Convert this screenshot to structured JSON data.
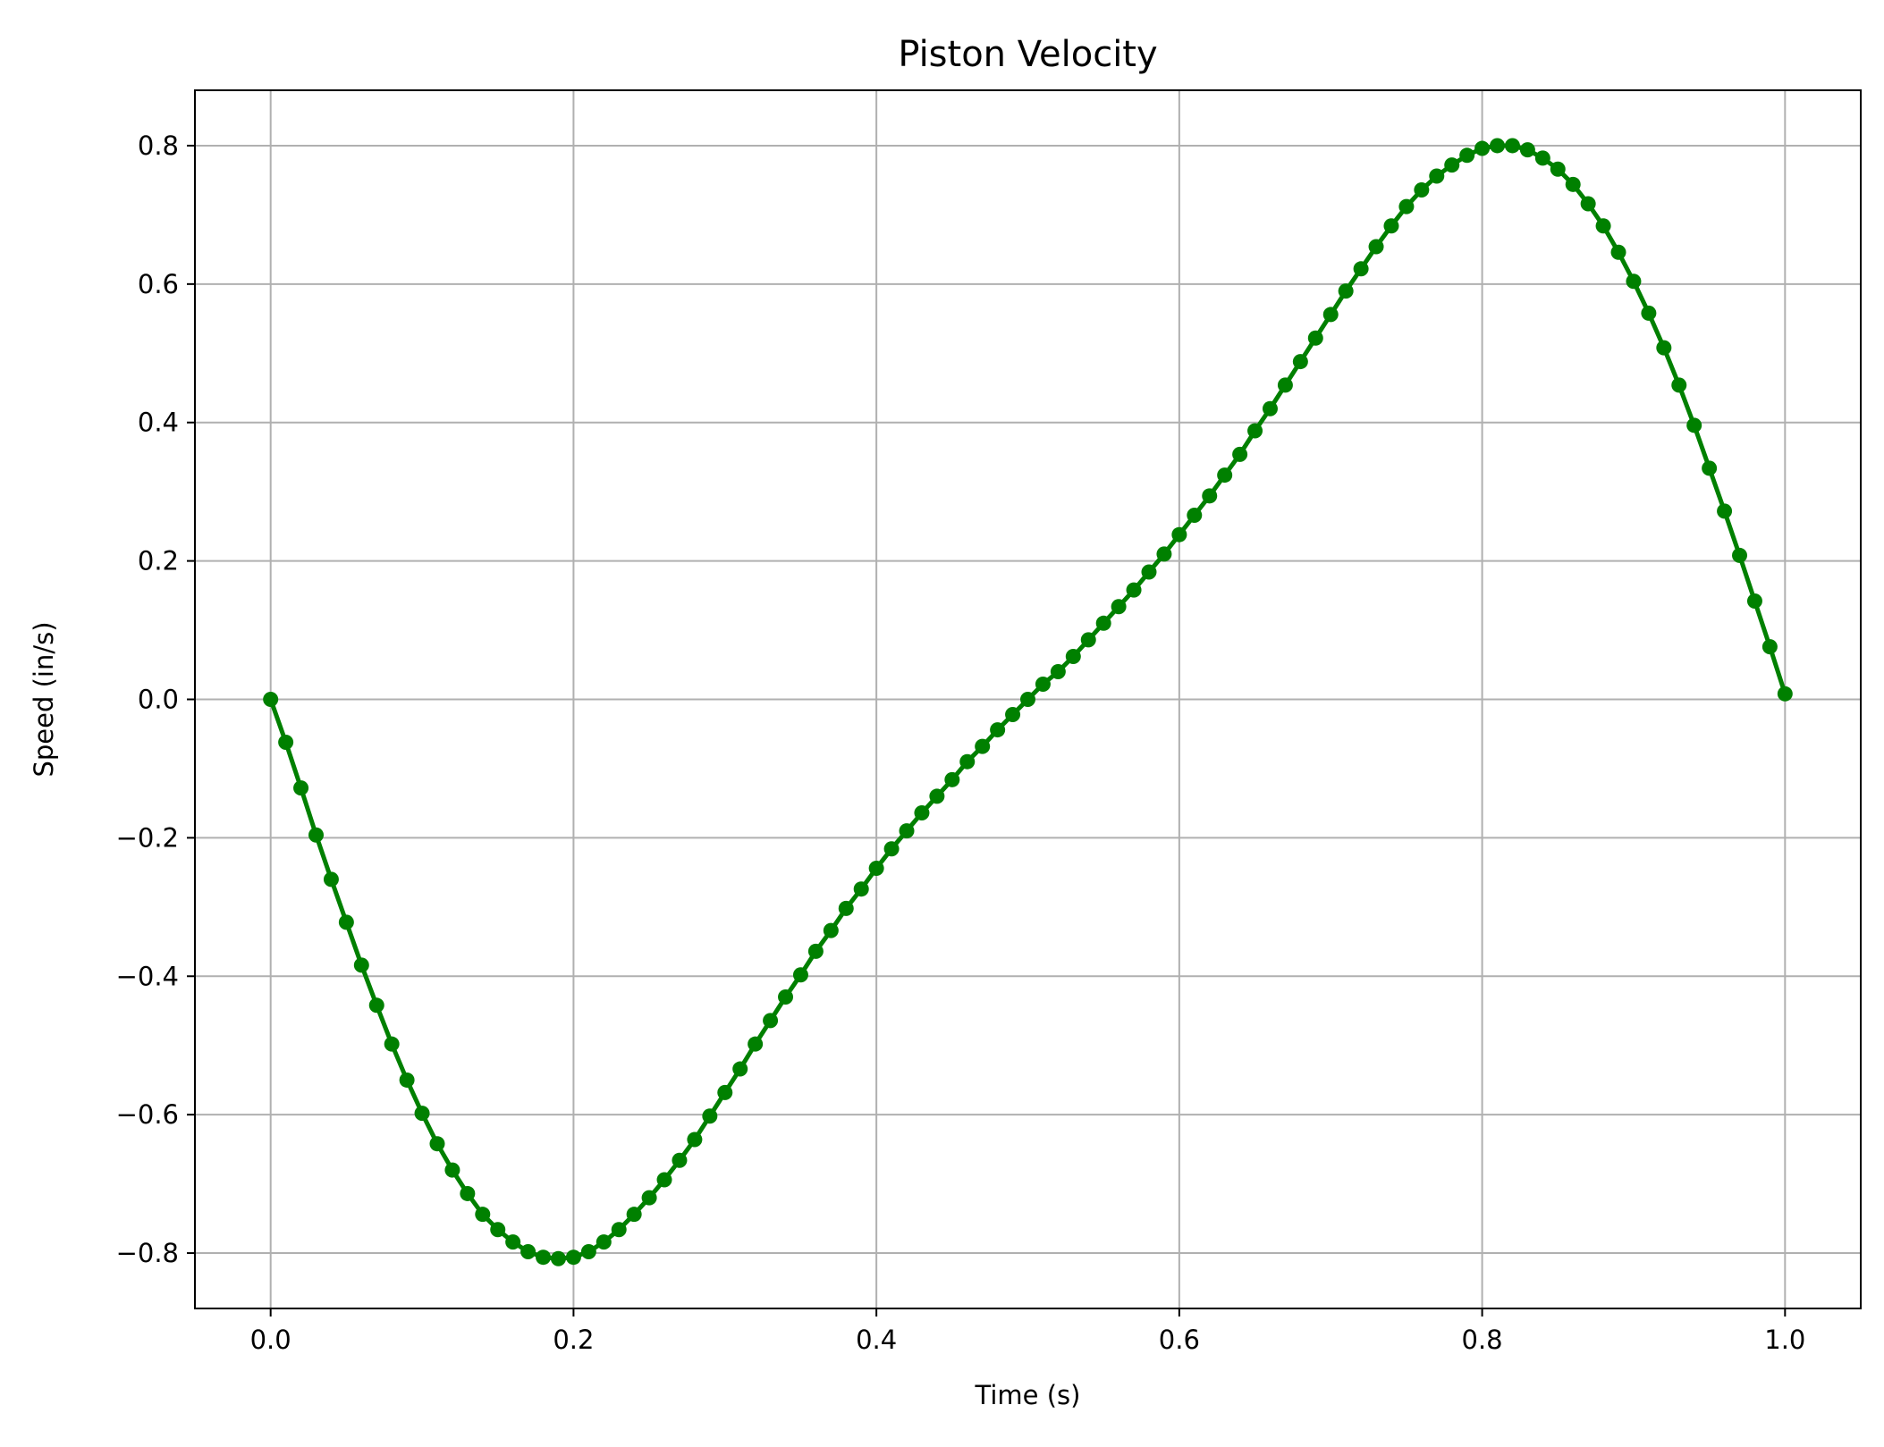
{
  "chart_data": {
    "type": "line",
    "title": "Piston Velocity",
    "xlabel": "Time (s)",
    "ylabel": "Speed (in/s)",
    "xlim": [
      -0.05,
      1.05
    ],
    "ylim": [
      -0.88,
      0.88
    ],
    "grid": true,
    "legend": "none",
    "x_ticks": [
      0.0,
      0.2,
      0.4,
      0.6,
      0.8,
      1.0
    ],
    "x_tick_labels": [
      "0.0",
      "0.2",
      "0.4",
      "0.6",
      "0.8",
      "1.0"
    ],
    "y_ticks": [
      -0.8,
      -0.6,
      -0.4,
      -0.2,
      0.0,
      0.2,
      0.4,
      0.6,
      0.8
    ],
    "y_tick_labels": [
      "−0.8",
      "−0.6",
      "−0.4",
      "−0.2",
      "0.0",
      "0.2",
      "0.4",
      "0.6",
      "0.8"
    ],
    "series": [
      {
        "color": "#008000",
        "marker": "circle",
        "x": [
          0.0,
          0.01,
          0.02,
          0.03,
          0.04,
          0.05,
          0.06,
          0.07,
          0.08,
          0.09,
          0.1,
          0.11,
          0.12,
          0.13,
          0.14,
          0.15,
          0.16,
          0.17,
          0.18,
          0.19,
          0.2,
          0.21,
          0.22,
          0.23,
          0.24,
          0.25,
          0.26,
          0.27,
          0.28,
          0.29,
          0.3,
          0.31,
          0.32,
          0.33,
          0.34,
          0.35,
          0.36,
          0.37,
          0.38,
          0.39,
          0.4,
          0.41,
          0.42,
          0.43,
          0.44,
          0.45,
          0.46,
          0.47,
          0.48,
          0.49,
          0.5,
          0.51,
          0.52,
          0.53,
          0.54,
          0.55,
          0.56,
          0.57,
          0.58,
          0.59,
          0.6,
          0.61,
          0.62,
          0.63,
          0.64,
          0.65,
          0.66,
          0.67,
          0.68,
          0.69,
          0.7,
          0.71,
          0.72,
          0.73,
          0.74,
          0.75,
          0.76,
          0.77,
          0.78,
          0.79,
          0.8,
          0.81,
          0.82,
          0.83,
          0.84,
          0.85,
          0.86,
          0.87,
          0.88,
          0.89,
          0.9,
          0.91,
          0.92,
          0.93,
          0.94,
          0.95,
          0.96,
          0.97,
          0.98,
          0.99,
          1.0
        ],
        "y": [
          0.0,
          -0.062,
          -0.128,
          -0.196,
          -0.26,
          -0.322,
          -0.384,
          -0.442,
          -0.498,
          -0.55,
          -0.598,
          -0.642,
          -0.68,
          -0.714,
          -0.744,
          -0.766,
          -0.784,
          -0.798,
          -0.806,
          -0.808,
          -0.806,
          -0.798,
          -0.784,
          -0.766,
          -0.744,
          -0.72,
          -0.694,
          -0.666,
          -0.636,
          -0.602,
          -0.568,
          -0.534,
          -0.498,
          -0.464,
          -0.43,
          -0.398,
          -0.364,
          -0.334,
          -0.302,
          -0.274,
          -0.244,
          -0.216,
          -0.19,
          -0.164,
          -0.14,
          -0.116,
          -0.09,
          -0.068,
          -0.044,
          -0.022,
          0.0,
          0.022,
          0.04,
          0.062,
          0.086,
          0.11,
          0.134,
          0.158,
          0.184,
          0.21,
          0.238,
          0.266,
          0.294,
          0.324,
          0.354,
          0.388,
          0.42,
          0.454,
          0.488,
          0.522,
          0.556,
          0.59,
          0.622,
          0.654,
          0.684,
          0.712,
          0.736,
          0.756,
          0.772,
          0.786,
          0.796,
          0.8,
          0.8,
          0.794,
          0.782,
          0.766,
          0.744,
          0.716,
          0.684,
          0.646,
          0.604,
          0.558,
          0.508,
          0.454,
          0.396,
          0.334,
          0.272,
          0.208,
          0.142,
          0.076,
          0.008
        ]
      }
    ]
  }
}
